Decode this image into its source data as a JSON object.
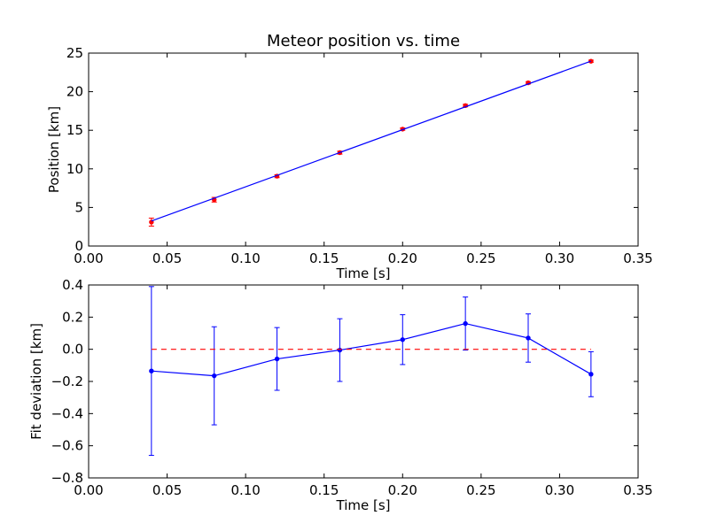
{
  "chart_data": [
    {
      "type": "line",
      "title": "Meteor position vs. time",
      "xlabel": "Time [s]",
      "ylabel": "Position [km]",
      "xlim": [
        0.0,
        0.35
      ],
      "ylim": [
        0,
        25
      ],
      "xticks": [
        "0.00",
        "0.05",
        "0.10",
        "0.15",
        "0.20",
        "0.25",
        "0.30",
        "0.35"
      ],
      "yticks": [
        "0",
        "5",
        "10",
        "15",
        "20",
        "25"
      ],
      "series": [
        {
          "kind": "errorbar-points",
          "color": "#ff0000",
          "x": [
            0.04,
            0.08,
            0.12,
            0.16,
            0.2,
            0.24,
            0.28,
            0.32
          ],
          "y": [
            3.1,
            6.0,
            9.05,
            12.1,
            15.15,
            18.2,
            21.15,
            23.95
          ],
          "yerr": [
            0.52,
            0.3,
            0.19,
            0.19,
            0.15,
            0.16,
            0.15,
            0.14
          ]
        },
        {
          "kind": "fit-line",
          "color": "#0000ff",
          "x": [
            0.04,
            0.32
          ],
          "y": [
            3.24,
            23.96
          ]
        }
      ]
    },
    {
      "type": "line",
      "title": "",
      "xlabel": "Time [s]",
      "ylabel": "Fit deviation [km]",
      "xlim": [
        0.0,
        0.35
      ],
      "ylim": [
        -0.8,
        0.4
      ],
      "xticks": [
        "0.00",
        "0.05",
        "0.10",
        "0.15",
        "0.20",
        "0.25",
        "0.30",
        "0.35"
      ],
      "yticks": [
        "−0.8",
        "−0.6",
        "−0.4",
        "−0.2",
        "0.0",
        "0.2",
        "0.4"
      ],
      "series": [
        {
          "kind": "errorbar-line",
          "color": "#0000ff",
          "x": [
            0.04,
            0.08,
            0.12,
            0.16,
            0.2,
            0.24,
            0.28,
            0.32
          ],
          "y": [
            -0.135,
            -0.165,
            -0.06,
            -0.005,
            0.06,
            0.16,
            0.07,
            -0.155
          ],
          "yerr": [
            0.525,
            0.305,
            0.195,
            0.195,
            0.155,
            0.165,
            0.15,
            0.14
          ]
        },
        {
          "kind": "reference-line",
          "color": "#ff0000",
          "dashed": true,
          "x": [
            0.04,
            0.32
          ],
          "y": [
            0,
            0
          ]
        }
      ]
    }
  ]
}
